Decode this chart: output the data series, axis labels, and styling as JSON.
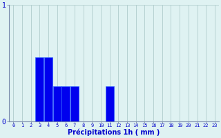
{
  "hours": [
    0,
    1,
    2,
    3,
    4,
    5,
    6,
    7,
    8,
    9,
    10,
    11,
    12,
    13,
    14,
    15,
    16,
    17,
    18,
    19,
    20,
    21,
    22,
    23
  ],
  "values": [
    0,
    0,
    0,
    0.55,
    0.55,
    0.3,
    0.3,
    0.3,
    0,
    0,
    0,
    0.3,
    0,
    0,
    0,
    0,
    0,
    0,
    0,
    0,
    0,
    0,
    0,
    0
  ],
  "bar_color": "#0000ee",
  "bar_edge_color": "#3366ff",
  "background_color": "#dff2f2",
  "grid_color": "#b0cccc",
  "axis_color": "#7788aa",
  "text_color": "#0000cc",
  "xlabel": "Précipitations 1h ( mm )",
  "ylim": [
    0,
    1
  ],
  "ytick_vals": [
    0,
    1
  ],
  "ytick_labels": [
    "0",
    "1"
  ],
  "xlim": [
    -0.5,
    23.5
  ],
  "xlabel_fontsize": 7,
  "tick_fontsize": 5,
  "ylabel_fontsize": 7
}
